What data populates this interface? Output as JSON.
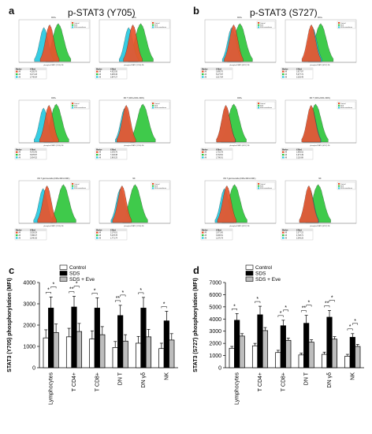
{
  "figure": {
    "panel_a": {
      "letter": "a",
      "title": "p-STAT3 (Y705)"
    },
    "panel_b": {
      "letter": "b",
      "title": "p-STAT3 (S727)"
    },
    "panel_c": {
      "letter": "c"
    },
    "panel_d": {
      "letter": "d"
    }
  },
  "histogram_legend": [
    "Control",
    "SDS",
    "SDS+everolimus"
  ],
  "histogram_stat_header": [
    "Marker",
    "X-Med"
  ],
  "colors": {
    "control": "#e8542b",
    "sds": "#2fc63c",
    "eve": "#26c9e0",
    "bar_control": "#ffffff",
    "bar_sds": "#000000",
    "bar_eve": "#bdbdbd"
  },
  "chart_data": [
    {
      "panel": "a",
      "type": "histogram-grid",
      "tiles": [
        {
          "title": "CD3+",
          "xlabel": "phospho-STAT3 (Y705) PE",
          "stats": [
            "4,205.76",
            "6,371.18",
            "2,740.64"
          ]
        },
        {
          "title": "CD4+",
          "xlabel": "phospho-STAT3 (Y705) PE",
          "stats": [
            "4,922.95",
            "6,905.36",
            "3,847.27"
          ]
        },
        {
          "title": "CD8+",
          "xlabel": "phospho-STAT3 (Y705) PE",
          "stats": [
            "4,041.45",
            "5,878.87",
            "2,654.52"
          ]
        },
        {
          "title": "DN T (CD3+/CD4-/CD8-)",
          "xlabel": "phospho-STAT3 (Y705) PE",
          "stats": [
            "3,242.76",
            "7,446.38",
            "2,863.25"
          ]
        },
        {
          "title": "DN T gamma delta (CD3+/CD4-/CD8-)",
          "xlabel": "phospho-STAT3 (Y705) PE",
          "stats": [
            "3,528.29",
            "7,688.27",
            "2,540.35"
          ]
        },
        {
          "title": "NK",
          "xlabel": "phospho-STAT3 (Y705) PE",
          "stats": [
            "2,176.01",
            "5,478.78",
            "1,771.74"
          ]
        }
      ]
    },
    {
      "panel": "b",
      "type": "histogram-grid",
      "tiles": [
        {
          "title": "CD3+",
          "xlabel": "phospho-STAT3 (S727) PE",
          "stats": [
            "3,695.70",
            "5,277.87",
            "3,217.84"
          ]
        },
        {
          "title": "CD4+",
          "xlabel": "phospho-STAT3 (S727) PE",
          "stats": [
            "3,017.87",
            "5,377.72",
            "3,335.49"
          ]
        },
        {
          "title": "CD8+",
          "xlabel": "phospho-STAT3 (S727) PE",
          "stats": [
            "1,716.78",
            "3,718.81",
            "1,786.91"
          ]
        },
        {
          "title": "DN T (CD3+/CD4-/CD8-)",
          "xlabel": "phospho-STAT3 (S727) PE",
          "stats": [
            "2,956.62",
            "4,071.49",
            "3,118.88"
          ]
        },
        {
          "title": "DN T gamma delta (CD3+/CD4-/CD8-)",
          "xlabel": "phospho-STAT3 (S727) PE",
          "stats": [
            "1,971.90",
            "3,906.51",
            "1,370.79"
          ]
        },
        {
          "title": "NK",
          "xlabel": "phospho-STAT3 (S727) PE",
          "stats": [
            "2,377.22",
            "4,728.71",
            "2,540.25"
          ]
        }
      ]
    },
    {
      "panel": "c",
      "type": "bar",
      "ylabel": "STAT3 (Y705) phosphorylation (MFI)",
      "ylim": [
        0,
        4000
      ],
      "yticks": [
        "0",
        "1000",
        "2000",
        "3000",
        "4000"
      ],
      "categories": [
        "Lymphocytes",
        "T CD4+",
        "T CD8+",
        "DN T",
        "DN γδ",
        "NK"
      ],
      "legend": [
        "Control",
        "SDS",
        "SDS + Eve"
      ],
      "series": [
        {
          "name": "Control",
          "values": [
            1400,
            1450,
            1350,
            950,
            1150,
            900
          ],
          "errors": [
            380,
            400,
            380,
            280,
            320,
            250
          ]
        },
        {
          "name": "SDS",
          "values": [
            2800,
            2850,
            2800,
            2450,
            2800,
            2200
          ],
          "errors": [
            520,
            500,
            480,
            480,
            500,
            450
          ]
        },
        {
          "name": "SDS + Eve",
          "values": [
            1650,
            1700,
            1550,
            1250,
            1450,
            1300
          ],
          "errors": [
            400,
            380,
            380,
            300,
            350,
            300
          ]
        }
      ],
      "significance": [
        [
          "*",
          "*"
        ],
        [
          "**",
          "*"
        ],
        [
          "*",
          ""
        ],
        [
          "**",
          "*"
        ],
        [
          "*",
          ""
        ],
        [
          "*",
          ""
        ]
      ]
    },
    {
      "panel": "d",
      "type": "bar",
      "ylabel": "STAT3 (S727) phosphorylation (MFI)",
      "ylim": [
        0,
        7000
      ],
      "yticks": [
        "0",
        "1000",
        "2000",
        "3000",
        "4000",
        "5000",
        "6000",
        "7000"
      ],
      "categories": [
        "Lymphocytes",
        "T CD4+",
        "T CD8+",
        "DN T",
        "DN γδ",
        "NK"
      ],
      "legend": [
        "Control",
        "SDS",
        "SDS + Eve"
      ],
      "series": [
        {
          "name": "Control",
          "values": [
            1600,
            1800,
            1250,
            1050,
            1100,
            950
          ],
          "errors": [
            150,
            200,
            180,
            150,
            180,
            150
          ]
        },
        {
          "name": "SDS",
          "values": [
            3900,
            4350,
            3450,
            3650,
            4150,
            2500
          ],
          "errors": [
            550,
            700,
            450,
            650,
            550,
            300
          ]
        },
        {
          "name": "SDS + Eve",
          "values": [
            2600,
            3050,
            2250,
            2100,
            2350,
            1750
          ],
          "errors": [
            200,
            250,
            180,
            200,
            200,
            170
          ]
        }
      ],
      "significance": [
        [
          "*",
          ""
        ],
        [
          "*",
          ""
        ],
        [
          "*",
          "*"
        ],
        [
          "**",
          "*"
        ],
        [
          "**",
          "*"
        ],
        [
          "*",
          "*"
        ]
      ]
    }
  ]
}
